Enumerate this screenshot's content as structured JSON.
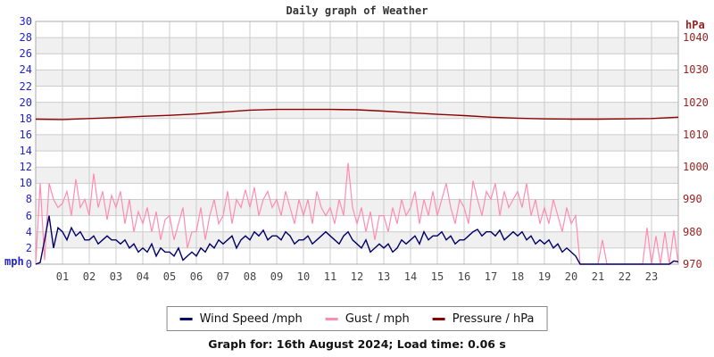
{
  "title": "Daily graph of Weather",
  "footer": "Graph for: 16th August 2024; Load time: 0.06 s",
  "legend": [
    {
      "label": "Wind Speed /mph",
      "color": "#000066"
    },
    {
      "label": "Gust / mph",
      "color": "#ff8cb3"
    },
    {
      "label": "Pressure / hPa",
      "color": "#8b0000"
    }
  ],
  "axes": {
    "left_unit": "mph",
    "left_min": 0,
    "left_max": 30,
    "left_step": 2,
    "right_unit": "hPa",
    "right_min": 970,
    "right_max": 1040,
    "right_step": 10,
    "x_labels": [
      "01",
      "02",
      "03",
      "04",
      "05",
      "06",
      "07",
      "08",
      "09",
      "10",
      "11",
      "12",
      "13",
      "14",
      "15",
      "16",
      "17",
      "18",
      "19",
      "20",
      "21",
      "22",
      "23"
    ]
  },
  "chart_data": {
    "type": "line",
    "title": "Daily graph of Weather",
    "x_axis": {
      "unit": "hour of day",
      "range": [
        0,
        24
      ],
      "tick_labels": [
        "01",
        "02",
        "03",
        "04",
        "05",
        "06",
        "07",
        "08",
        "09",
        "10",
        "11",
        "12",
        "13",
        "14",
        "15",
        "16",
        "17",
        "18",
        "19",
        "20",
        "21",
        "22",
        "23"
      ]
    },
    "left_axis": {
      "label": "mph",
      "range": [
        0,
        30
      ],
      "step": 2
    },
    "right_axis": {
      "label": "hPa",
      "range": [
        970,
        1040
      ],
      "step": 10
    },
    "grid": true,
    "legend_position": "bottom",
    "series": [
      {
        "name": "Wind Speed /mph",
        "axis": "left",
        "color": "#000066",
        "sample_minutes": 10,
        "values": [
          0,
          0.2,
          3,
          6,
          2,
          4.5,
          4,
          3,
          4.5,
          3.5,
          4,
          3,
          3,
          3.5,
          2.5,
          3,
          3.5,
          3,
          3,
          2.5,
          3,
          2,
          2.5,
          1.5,
          2,
          1.5,
          2.5,
          1,
          2,
          1.5,
          1.5,
          1,
          2,
          0.5,
          1,
          1.5,
          1,
          2,
          1.5,
          2.5,
          2,
          3,
          2.5,
          3,
          3.5,
          2,
          3,
          3.5,
          3,
          4,
          3.5,
          4.2,
          3,
          3.5,
          3.5,
          3,
          4,
          3.5,
          2.5,
          3,
          3,
          3.5,
          2.5,
          3,
          3.5,
          4,
          3.5,
          3,
          2.5,
          3.5,
          4,
          3,
          2.5,
          2,
          3,
          1.5,
          2,
          2.5,
          2,
          2.5,
          1.5,
          2,
          3,
          2.5,
          3,
          3.5,
          2.5,
          4,
          3,
          3.5,
          3.5,
          4,
          3,
          3.5,
          2.5,
          3,
          3,
          3.5,
          4,
          4.3,
          3.5,
          4,
          4,
          3.5,
          4.2,
          3,
          3.5,
          4,
          3.5,
          4,
          3,
          3.5,
          2.5,
          3,
          2.5,
          3,
          2,
          2.5,
          1.5,
          2,
          1.5,
          1,
          0,
          0,
          0,
          0,
          0,
          0,
          0,
          0,
          0,
          0,
          0,
          0,
          0,
          0,
          0,
          0,
          0,
          0,
          0,
          0,
          0,
          0.4,
          0.3
        ]
      },
      {
        "name": "Gust / mph",
        "axis": "left",
        "color": "#ff8cb3",
        "sample_minutes": 10,
        "values": [
          0,
          10,
          0.5,
          10,
          8,
          7,
          7.5,
          9,
          6,
          10.5,
          7,
          8,
          6,
          11.2,
          7,
          9,
          5.5,
          8.5,
          7,
          9,
          5,
          8,
          4,
          6.5,
          5,
          7,
          4,
          6.5,
          3,
          5.5,
          6,
          3,
          5,
          7,
          2,
          4,
          4,
          7,
          3,
          6,
          8,
          5,
          6,
          9,
          5,
          8,
          7,
          9.2,
          7,
          9.5,
          6,
          8,
          9,
          7,
          8,
          6,
          9,
          7,
          5,
          8,
          6,
          8,
          5,
          9,
          7,
          6,
          7,
          5,
          8,
          6,
          12.5,
          7,
          5,
          7,
          4,
          6.5,
          3,
          6,
          6,
          4,
          7,
          5,
          8,
          6,
          7,
          9,
          5,
          8,
          6,
          9,
          6,
          8,
          10,
          7,
          5,
          8,
          7,
          5,
          10.3,
          8,
          6,
          9,
          8,
          10,
          6,
          9,
          7,
          8,
          9,
          7,
          10,
          6,
          8,
          5,
          7,
          5,
          8,
          6,
          4,
          7,
          5,
          6,
          0,
          0,
          0,
          0,
          0,
          3,
          0,
          0,
          0,
          0,
          0,
          0,
          0,
          0,
          0,
          4.5,
          0,
          3.5,
          0,
          4,
          0,
          4.2,
          0
        ]
      },
      {
        "name": "Pressure / hPa",
        "axis": "right",
        "color": "#8b0000",
        "sample_minutes": 60,
        "values": [
          1014.8,
          1014.7,
          1015.0,
          1015.3,
          1015.7,
          1016.0,
          1016.4,
          1017.0,
          1017.6,
          1017.8,
          1017.8,
          1017.8,
          1017.7,
          1017.3,
          1016.8,
          1016.3,
          1015.9,
          1015.4,
          1015.1,
          1014.9,
          1014.8,
          1014.8,
          1014.9,
          1015.0,
          1015.4
        ]
      }
    ]
  }
}
